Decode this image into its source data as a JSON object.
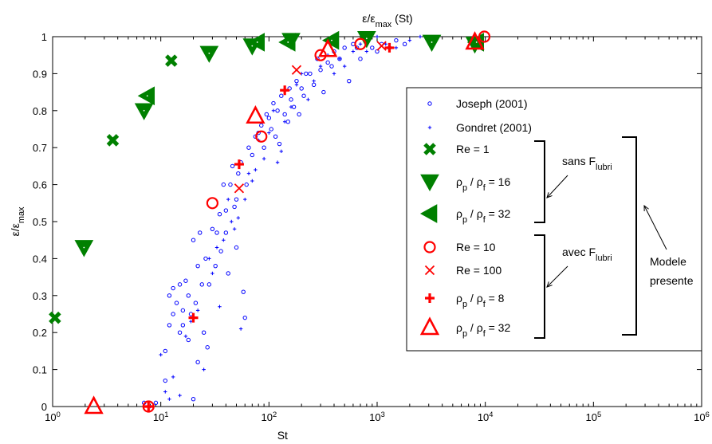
{
  "chart_data": {
    "type": "scatter",
    "title": "ε/ε",
    "title_sub": "max",
    "title_suffix": " (St)",
    "xlabel": "St",
    "ylabel": "ε/ε",
    "ylabel_sub": "max",
    "x_scale": "log",
    "xlim": [
      1,
      1000000
    ],
    "ylim": [
      0,
      1
    ],
    "grid": false,
    "legend_position": "right",
    "x_ticks": [
      {
        "base": "10",
        "exp": "0"
      },
      {
        "base": "10",
        "exp": "1"
      },
      {
        "base": "10",
        "exp": "2"
      },
      {
        "base": "10",
        "exp": "3"
      },
      {
        "base": "10",
        "exp": "4"
      },
      {
        "base": "10",
        "exp": "5"
      },
      {
        "base": "10",
        "exp": "6"
      }
    ],
    "y_ticks": [
      "0",
      "0.1",
      "0.2",
      "0.3",
      "0.4",
      "0.5",
      "0.6",
      "0.7",
      "0.8",
      "0.9",
      "1"
    ],
    "series": [
      {
        "name": "Joseph (2001)",
        "marker": "circle-small",
        "color": "#0000ff",
        "points": [
          [
            7,
            0.01
          ],
          [
            9,
            0.01
          ],
          [
            11,
            0.07
          ],
          [
            11,
            0.15
          ],
          [
            12,
            0.22
          ],
          [
            12,
            0.3
          ],
          [
            13,
            0.25
          ],
          [
            13,
            0.32
          ],
          [
            14,
            0.28
          ],
          [
            15,
            0.2
          ],
          [
            15,
            0.33
          ],
          [
            16,
            0.22
          ],
          [
            16,
            0.26
          ],
          [
            17,
            0.34
          ],
          [
            18,
            0.18
          ],
          [
            18,
            0.3
          ],
          [
            19,
            0.25
          ],
          [
            20,
            0.02
          ],
          [
            20,
            0.45
          ],
          [
            21,
            0.28
          ],
          [
            22,
            0.38
          ],
          [
            22,
            0.12
          ],
          [
            23,
            0.47
          ],
          [
            24,
            0.33
          ],
          [
            25,
            0.2
          ],
          [
            26,
            0.4
          ],
          [
            27,
            0.16
          ],
          [
            28,
            0.33
          ],
          [
            30,
            0.48
          ],
          [
            32,
            0.38
          ],
          [
            33,
            0.47
          ],
          [
            35,
            0.52
          ],
          [
            36,
            0.42
          ],
          [
            38,
            0.6
          ],
          [
            40,
            0.47
          ],
          [
            40,
            0.53
          ],
          [
            42,
            0.36
          ],
          [
            44,
            0.6
          ],
          [
            46,
            0.65
          ],
          [
            48,
            0.54
          ],
          [
            50,
            0.43
          ],
          [
            50,
            0.56
          ],
          [
            52,
            0.63
          ],
          [
            55,
            0.66
          ],
          [
            58,
            0.31
          ],
          [
            60,
            0.24
          ],
          [
            62,
            0.6
          ],
          [
            65,
            0.7
          ],
          [
            70,
            0.68
          ],
          [
            75,
            0.73
          ],
          [
            80,
            0.74
          ],
          [
            85,
            0.76
          ],
          [
            90,
            0.7
          ],
          [
            95,
            0.79
          ],
          [
            100,
            0.78
          ],
          [
            105,
            0.75
          ],
          [
            110,
            0.82
          ],
          [
            115,
            0.73
          ],
          [
            120,
            0.8
          ],
          [
            125,
            0.71
          ],
          [
            130,
            0.84
          ],
          [
            140,
            0.79
          ],
          [
            150,
            0.77
          ],
          [
            155,
            0.86
          ],
          [
            160,
            0.83
          ],
          [
            170,
            0.81
          ],
          [
            180,
            0.88
          ],
          [
            190,
            0.79
          ],
          [
            200,
            0.86
          ],
          [
            210,
            0.84
          ],
          [
            220,
            0.9
          ],
          [
            240,
            0.9
          ],
          [
            260,
            0.87
          ],
          [
            280,
            0.94
          ],
          [
            300,
            0.91
          ],
          [
            320,
            0.85
          ],
          [
            350,
            0.93
          ],
          [
            380,
            0.92
          ],
          [
            400,
            0.96
          ],
          [
            450,
            0.94
          ],
          [
            500,
            0.97
          ],
          [
            550,
            0.88
          ],
          [
            600,
            0.98
          ],
          [
            650,
            0.97
          ],
          [
            700,
            0.94
          ],
          [
            800,
            0.99
          ],
          [
            900,
            0.97
          ],
          [
            1000,
            0.96
          ],
          [
            1100,
            0.98
          ],
          [
            1300,
            0.97
          ],
          [
            1500,
            0.99
          ],
          [
            1800,
            0.98
          ]
        ]
      },
      {
        "name": "Gondret (2001)",
        "marker": "plus-small",
        "color": "#0000ff",
        "points": [
          [
            8,
            0.0
          ],
          [
            10,
            0.14
          ],
          [
            11,
            0.04
          ],
          [
            12,
            0.02
          ],
          [
            13,
            0.08
          ],
          [
            15,
            0.03
          ],
          [
            17,
            0.19
          ],
          [
            19,
            0.23
          ],
          [
            22,
            0.26
          ],
          [
            25,
            0.1
          ],
          [
            28,
            0.4
          ],
          [
            30,
            0.36
          ],
          [
            33,
            0.43
          ],
          [
            35,
            0.27
          ],
          [
            38,
            0.45
          ],
          [
            42,
            0.56
          ],
          [
            45,
            0.5
          ],
          [
            48,
            0.48
          ],
          [
            52,
            0.51
          ],
          [
            55,
            0.21
          ],
          [
            60,
            0.56
          ],
          [
            65,
            0.63
          ],
          [
            70,
            0.61
          ],
          [
            75,
            0.64
          ],
          [
            80,
            0.72
          ],
          [
            90,
            0.67
          ],
          [
            100,
            0.74
          ],
          [
            110,
            0.8
          ],
          [
            120,
            0.66
          ],
          [
            130,
            0.69
          ],
          [
            140,
            0.77
          ],
          [
            160,
            0.81
          ],
          [
            180,
            0.87
          ],
          [
            200,
            0.9
          ],
          [
            230,
            0.83
          ],
          [
            260,
            0.88
          ],
          [
            300,
            0.92
          ],
          [
            350,
            0.95
          ],
          [
            400,
            0.9
          ],
          [
            450,
            0.94
          ],
          [
            500,
            0.92
          ],
          [
            600,
            0.96
          ],
          [
            700,
            0.98
          ],
          [
            800,
            0.96
          ],
          [
            1000,
            1.0
          ],
          [
            1200,
            0.98
          ],
          [
            1500,
            0.97
          ],
          [
            2000,
            0.99
          ],
          [
            2500,
            1.0
          ]
        ]
      },
      {
        "name": "Re = 1",
        "marker": "x-bold",
        "color": "#008000",
        "points": [
          [
            1.05,
            0.24
          ],
          [
            3.6,
            0.72
          ],
          [
            12.5,
            0.935
          ]
        ]
      },
      {
        "name": "ρ",
        "name_sub1": "p",
        "name_mid": " / ρ",
        "name_sub2": "f",
        "name_suffix": " = 16",
        "marker": "triangle-down",
        "color": "#008000",
        "points": [
          [
            1.95,
            0.43
          ],
          [
            7.0,
            0.8
          ],
          [
            28,
            0.955
          ],
          [
            70,
            0.975
          ],
          [
            160,
            0.99
          ],
          [
            800,
            0.995
          ],
          [
            3200,
            0.985
          ],
          [
            8000,
            0.98
          ]
        ]
      },
      {
        "name": "ρ",
        "name_sub1": "p",
        "name_mid": " / ρ",
        "name_sub2": "f",
        "name_suffix": " = 32",
        "marker": "triangle-left",
        "color": "#008000",
        "points": [
          [
            7.5,
            0.84
          ],
          [
            78,
            0.985
          ],
          [
            150,
            0.985
          ],
          [
            380,
            0.99
          ],
          [
            8300,
            0.985
          ]
        ]
      },
      {
        "name": "Re = 10",
        "marker": "circle",
        "color": "#ff0000",
        "points": [
          [
            7.7,
            0.0
          ],
          [
            30,
            0.55
          ],
          [
            85,
            0.73
          ],
          [
            300,
            0.95
          ],
          [
            700,
            0.98
          ],
          [
            9800,
            1.0
          ]
        ]
      },
      {
        "name": "Re = 100",
        "marker": "x",
        "color": "#ff0000",
        "points": [
          [
            53,
            0.59
          ],
          [
            180,
            0.91
          ],
          [
            1100,
            0.975
          ]
        ]
      },
      {
        "name": "ρ",
        "name_sub1": "p",
        "name_mid": " / ρ",
        "name_sub2": "f",
        "name_suffix": " = 8",
        "marker": "plus",
        "color": "#ff0000",
        "points": [
          [
            7.7,
            0.0
          ],
          [
            20,
            0.24
          ],
          [
            53,
            0.655
          ],
          [
            140,
            0.855
          ],
          [
            1300,
            0.97
          ]
        ]
      },
      {
        "name": "ρ",
        "name_sub1": "p",
        "name_mid": " / ρ",
        "name_sub2": "f",
        "name_suffix": " = 32",
        "marker": "triangle-up",
        "color": "#ff0000",
        "points": [
          [
            2.4,
            0.0
          ],
          [
            75,
            0.785
          ],
          [
            350,
            0.965
          ],
          [
            8000,
            0.985
          ]
        ]
      }
    ],
    "annotations": {
      "sans": {
        "text": "sans F",
        "sub": "lubri"
      },
      "avec": {
        "text": "avec F",
        "sub": "lubri"
      },
      "modele_line1": "Modele",
      "modele_line2": "presente"
    }
  }
}
